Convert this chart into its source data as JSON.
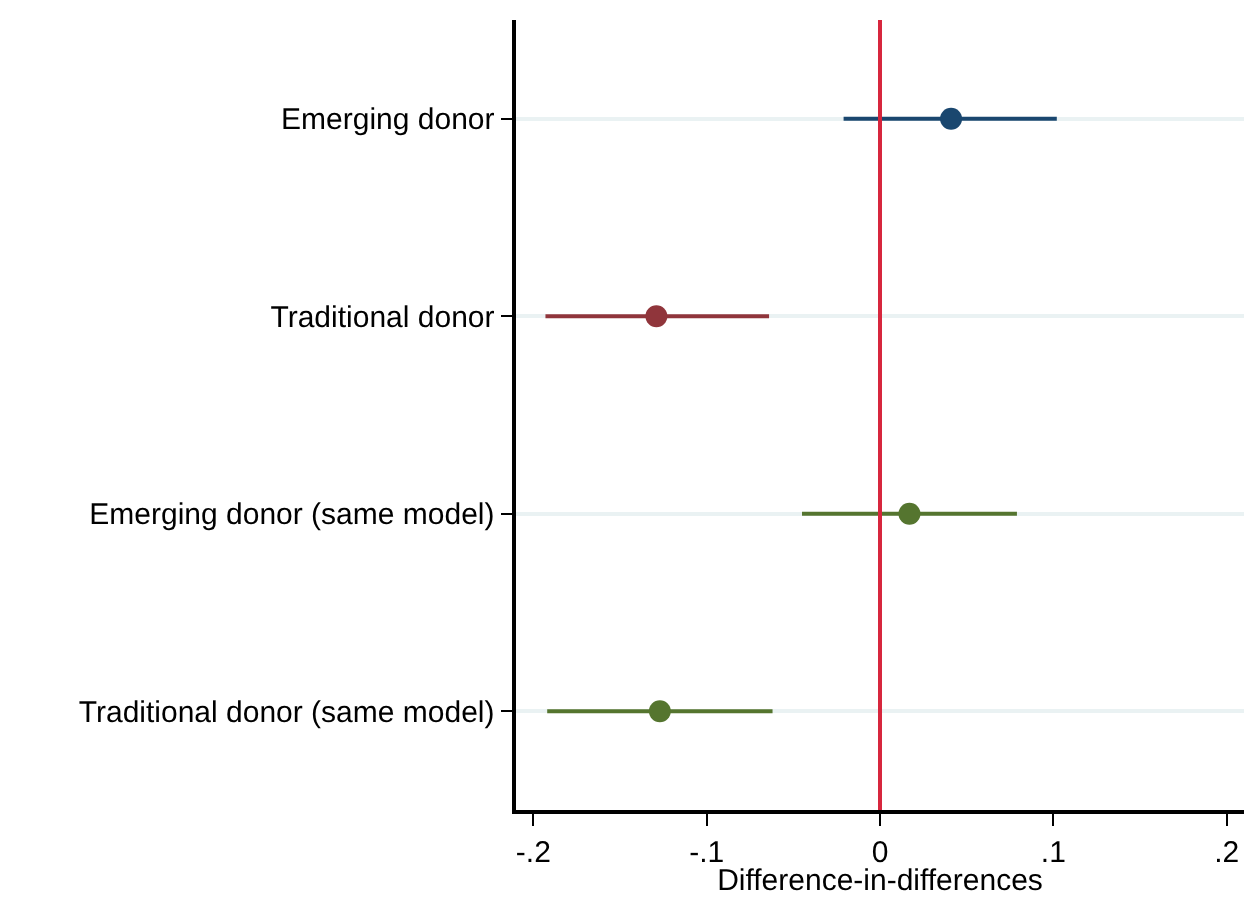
{
  "chart_data": {
    "type": "scatter",
    "orientation": "horizontal",
    "xlabel": "Difference-in-differences",
    "categories": [
      "Emerging donor",
      "Traditional donor",
      "Emerging donor (same model)",
      "Traditional donor (same model)"
    ],
    "values": [
      0.041,
      -0.129,
      0.017,
      -0.127
    ],
    "errors": [
      [
        -0.021,
        0.102
      ],
      [
        -0.193,
        -0.064
      ],
      [
        -0.045,
        0.079
      ],
      [
        -0.192,
        -0.062
      ]
    ],
    "colors": [
      "#1a476f",
      "#90353b",
      "#55752f",
      "#55752f"
    ],
    "xlim": [
      -0.21,
      0.21
    ],
    "xticks": [
      {
        "value": -0.2,
        "label": "-.2"
      },
      {
        "value": -0.1,
        "label": "-.1"
      },
      0,
      {
        "value": 0.1,
        "label": ".1"
      },
      {
        "value": 0.2,
        "label": ".2"
      }
    ],
    "ref_lines": [
      {
        "axis": "x",
        "value": 0,
        "color": "#d7263d"
      }
    ],
    "grid": "y",
    "marker": "circle"
  }
}
